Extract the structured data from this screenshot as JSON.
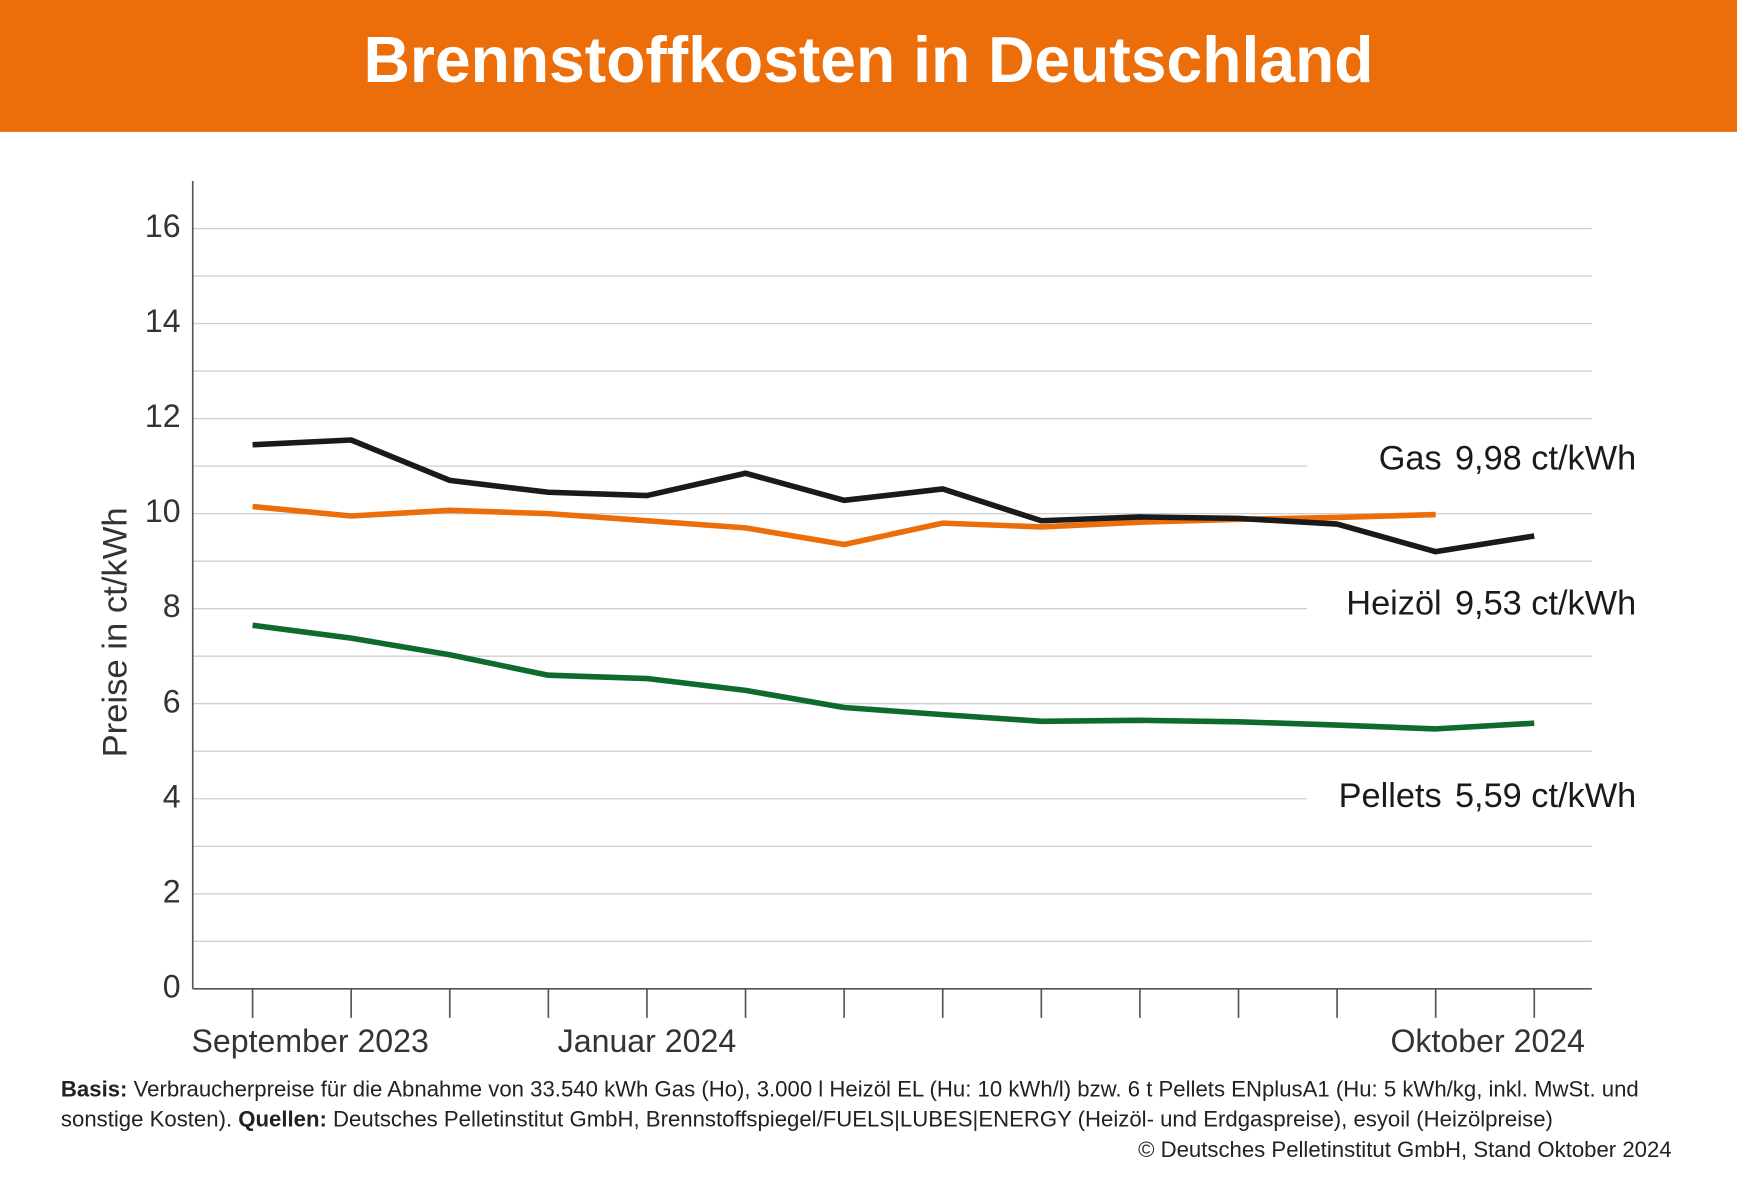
{
  "chart_data": {
    "type": "line",
    "title": "Brennstoffkosten in Deutschland",
    "ylabel": "Preise in ct/kWh",
    "categories": [
      "September 2023",
      null,
      null,
      null,
      "Januar 2024",
      null,
      null,
      null,
      null,
      null,
      null,
      null,
      null,
      "Oktober 2024"
    ],
    "series": [
      {
        "name": "Gas",
        "color": "#ec6e0a",
        "end_label": "9,98 ct/kWh",
        "values": [
          10.15,
          9.95,
          10.07,
          10.0,
          9.85,
          9.7,
          9.35,
          9.8,
          9.72,
          9.82,
          9.88,
          9.92,
          9.98,
          null
        ]
      },
      {
        "name": "Heizöl",
        "color": "#1a1a1a",
        "end_label": "9,53 ct/kWh",
        "values": [
          11.45,
          11.55,
          10.7,
          10.45,
          10.38,
          10.85,
          10.28,
          10.52,
          9.85,
          9.93,
          9.9,
          9.78,
          9.2,
          9.53
        ]
      },
      {
        "name": "Pellets",
        "color": "#0f6b2c",
        "end_label": "5,59 ct/kWh",
        "values": [
          7.65,
          7.38,
          7.03,
          6.6,
          6.53,
          6.28,
          5.92,
          5.77,
          5.63,
          5.65,
          5.62,
          5.55,
          5.47,
          5.59
        ]
      }
    ],
    "ylim": [
      0,
      17
    ],
    "yticks": [
      0,
      2,
      4,
      6,
      8,
      10,
      12,
      14,
      16
    ],
    "minor_yticks": [
      1,
      3,
      5,
      7,
      9,
      11,
      13,
      15
    ],
    "grid": true
  },
  "footer": [
    [
      {
        "text": "Basis:",
        "bold": true
      },
      {
        "text": " Verbraucherpreise für die Abnahme von 33.540 kWh Gas (Ho), 3.000 l Heizöl EL (Hu: 10 kWh/l) bzw. 6 t Pellets ENplusA1 (Hu: 5 kWh/kg, inkl. MwSt. und",
        "bold": false
      }
    ],
    [
      {
        "text": "sonstige Kosten).",
        "bold": false
      },
      {
        "text": " Quellen:",
        "bold": true
      },
      {
        "text": " Deutsches Pelletinstitut GmbH, Brennstoffspiegel/FUELS|LUBES|ENERGY (Heizöl- und Erdgaspreise), esyoil (Heizölpreise)",
        "bold": false
      }
    ],
    [
      {
        "text": "© Deutsches Pelletinstitut GmbH, Stand Oktober 2024",
        "bold": false
      }
    ]
  ]
}
